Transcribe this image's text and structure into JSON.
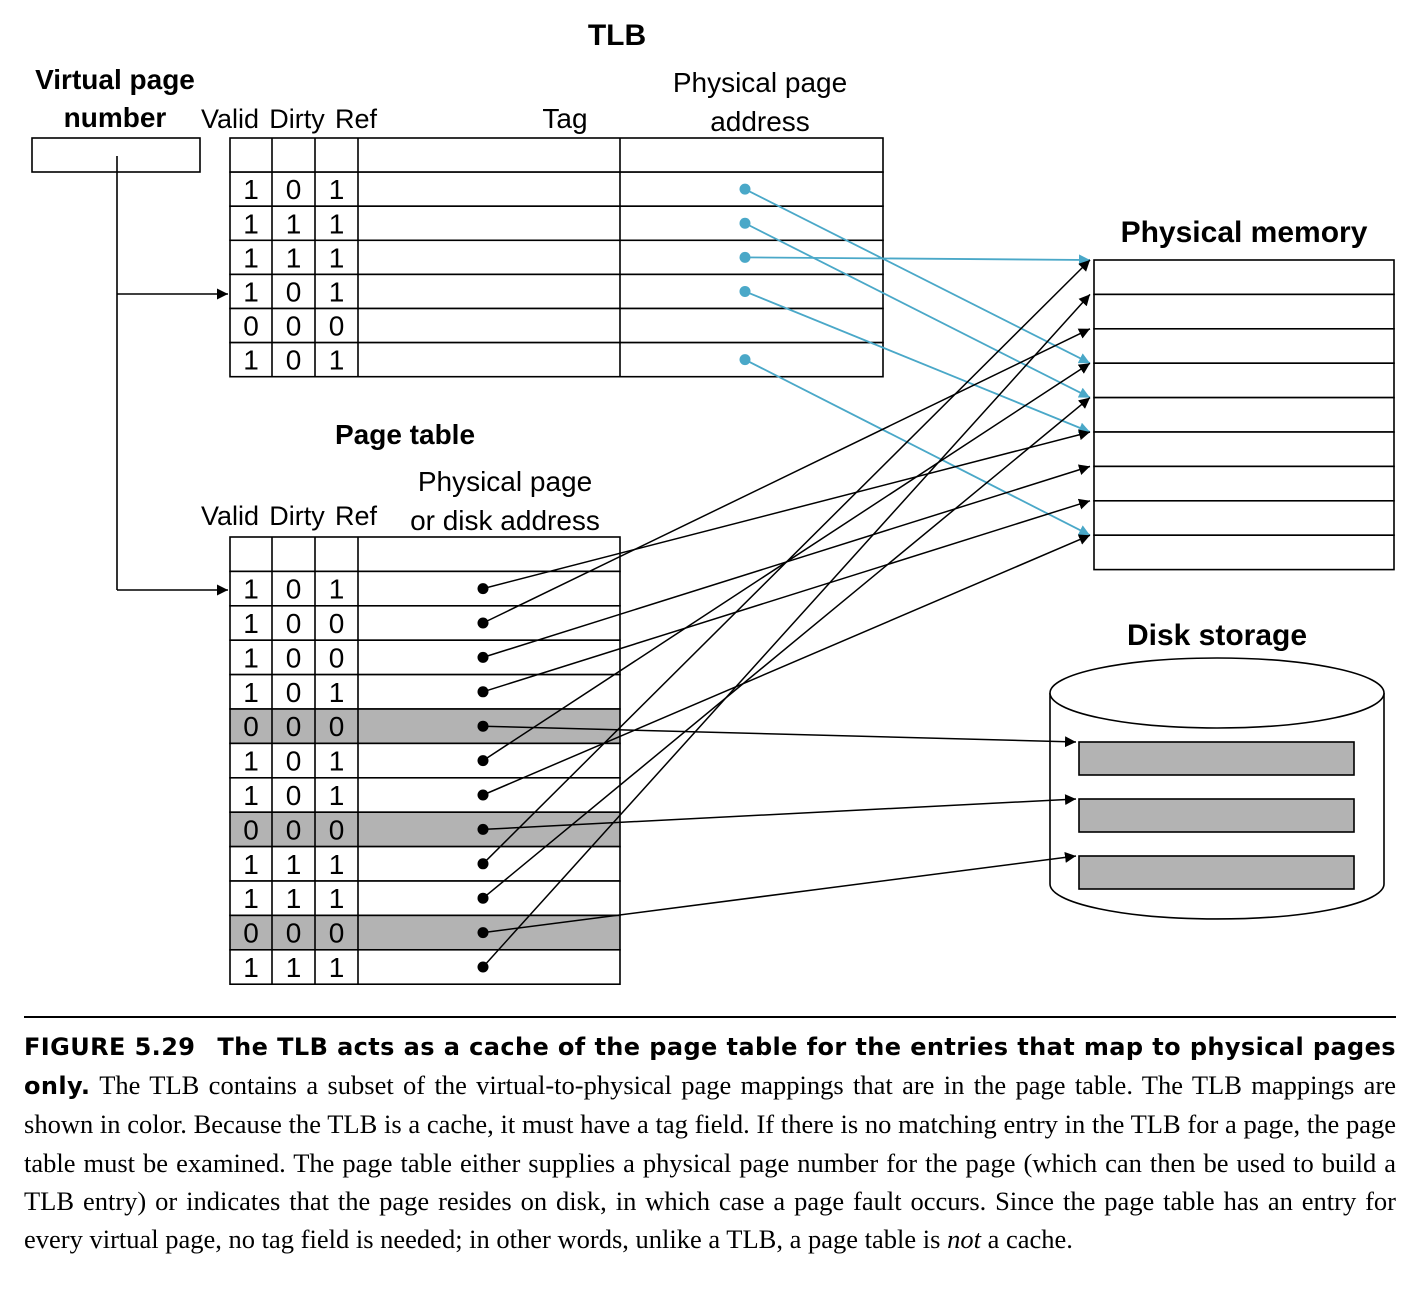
{
  "tlb": {
    "title": "TLB",
    "vpn_label_line1": "Virtual page",
    "vpn_label_line2": "number",
    "headers": {
      "valid": "Valid",
      "dirty": "Dirty",
      "ref": "Ref",
      "tag": "Tag",
      "ppa_line1": "Physical page",
      "ppa_line2": "address"
    },
    "rows": [
      {
        "valid": "",
        "dirty": "",
        "ref": "",
        "mapped": false
      },
      {
        "valid": "1",
        "dirty": "0",
        "ref": "1",
        "mapped": true
      },
      {
        "valid": "1",
        "dirty": "1",
        "ref": "1",
        "mapped": true
      },
      {
        "valid": "1",
        "dirty": "1",
        "ref": "1",
        "mapped": true
      },
      {
        "valid": "1",
        "dirty": "0",
        "ref": "1",
        "mapped": true
      },
      {
        "valid": "0",
        "dirty": "0",
        "ref": "0",
        "mapped": false
      },
      {
        "valid": "1",
        "dirty": "0",
        "ref": "1",
        "mapped": true
      }
    ]
  },
  "page_table": {
    "title": "Page table",
    "headers": {
      "valid": "Valid",
      "dirty": "Dirty",
      "ref": "Ref",
      "addr_line1": "Physical page",
      "addr_line2": "or disk address"
    },
    "rows": [
      {
        "valid": "",
        "dirty": "",
        "ref": "",
        "on_disk": false,
        "has_pointer": false
      },
      {
        "valid": "1",
        "dirty": "0",
        "ref": "1",
        "on_disk": false,
        "has_pointer": true
      },
      {
        "valid": "1",
        "dirty": "0",
        "ref": "0",
        "on_disk": false,
        "has_pointer": true
      },
      {
        "valid": "1",
        "dirty": "0",
        "ref": "0",
        "on_disk": false,
        "has_pointer": true
      },
      {
        "valid": "1",
        "dirty": "0",
        "ref": "1",
        "on_disk": false,
        "has_pointer": true
      },
      {
        "valid": "0",
        "dirty": "0",
        "ref": "0",
        "on_disk": true,
        "has_pointer": true
      },
      {
        "valid": "1",
        "dirty": "0",
        "ref": "1",
        "on_disk": false,
        "has_pointer": true
      },
      {
        "valid": "1",
        "dirty": "0",
        "ref": "1",
        "on_disk": false,
        "has_pointer": true
      },
      {
        "valid": "0",
        "dirty": "0",
        "ref": "0",
        "on_disk": true,
        "has_pointer": true
      },
      {
        "valid": "1",
        "dirty": "1",
        "ref": "1",
        "on_disk": false,
        "has_pointer": true
      },
      {
        "valid": "1",
        "dirty": "1",
        "ref": "1",
        "on_disk": false,
        "has_pointer": true
      },
      {
        "valid": "0",
        "dirty": "0",
        "ref": "0",
        "on_disk": true,
        "has_pointer": true
      },
      {
        "valid": "1",
        "dirty": "1",
        "ref": "1",
        "on_disk": false,
        "has_pointer": true
      }
    ]
  },
  "physical_memory": {
    "title": "Physical memory"
  },
  "disk_storage": {
    "title": "Disk storage"
  },
  "colors": {
    "tlb_mapping": "#4aa8c8",
    "page_table_mapping": "#000000",
    "on_disk_row": "#b3b3b3",
    "disk_block": "#b3b3b3"
  },
  "caption": {
    "label": "FIGURE 5.29",
    "title": "The TLB acts as a cache of the page table for the entries that map to physical pages only.",
    "body_1": "The TLB contains a subset of the virtual-to-physical page mappings that are in the page table. The TLB mappings are shown in color. Because the TLB is a cache, it must have a tag field. If there is no matching entry in the TLB for a page, the page table must be examined. The page table either supplies a physical page number for the page (which can then be used to build a TLB entry) or indicates that the page resides on disk, in which case a page fault occurs. Since the page table has an entry for every virtual page, no tag field is needed; in other words, unlike a TLB, a page table is ",
    "emphasis": "not",
    "body_2": " a cache."
  }
}
